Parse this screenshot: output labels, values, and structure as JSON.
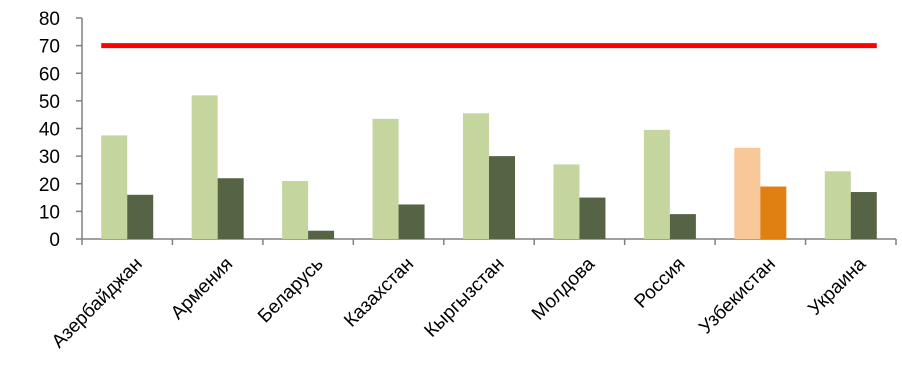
{
  "chart_data": {
    "type": "bar",
    "categories": [
      "Азербайджан",
      "Армения",
      "Беларусь",
      "Казахстан",
      "Кыргызстан",
      "Молдова",
      "Россия",
      "Узбекистан",
      "Украина"
    ],
    "series": [
      {
        "values": [
          37.5,
          52,
          21,
          43.5,
          45.5,
          27,
          39.5,
          33,
          24.5
        ]
      },
      {
        "values": [
          16,
          22,
          3,
          12.5,
          30,
          15,
          9,
          19,
          17
        ]
      }
    ],
    "reference_line": {
      "value": 70,
      "color": "#ff0000"
    },
    "colors": {
      "series_default": [
        "#c4d59e",
        "#566344"
      ],
      "highlight_category": "Узбекистан",
      "series_highlight": [
        "#f8c898",
        "#e07f12"
      ]
    },
    "ylim": [
      0,
      80
    ],
    "yticks": [
      0,
      10,
      20,
      30,
      40,
      50,
      60,
      70,
      80
    ],
    "grid": false,
    "xlabel": "",
    "ylabel": "",
    "title": ""
  }
}
